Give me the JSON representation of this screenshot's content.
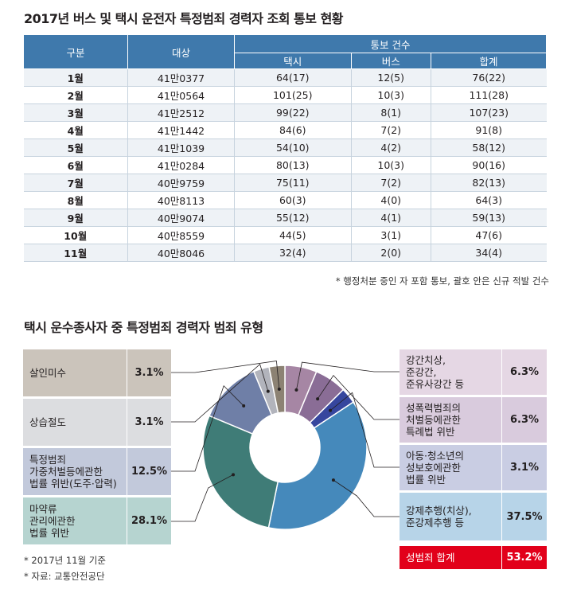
{
  "table_title": "2017년 버스 및 택시 운전자 특정범죄 경력자 조회 통보 현황",
  "table": {
    "headers": {
      "category": "구분",
      "target": "대상",
      "group": "통보 건수",
      "taxi": "택시",
      "bus": "버스",
      "total": "합계"
    },
    "rows": [
      [
        "1월",
        "41만0377",
        "64(17)",
        "12(5)",
        "76(22)"
      ],
      [
        "2월",
        "41만0564",
        "101(25)",
        "10(3)",
        "111(28)"
      ],
      [
        "3월",
        "41만2512",
        "99(22)",
        "8(1)",
        "107(23)"
      ],
      [
        "4월",
        "41만1442",
        "84(6)",
        "7(2)",
        "91(8)"
      ],
      [
        "5월",
        "41만1039",
        "54(10)",
        "4(2)",
        "58(12)"
      ],
      [
        "6월",
        "41만0284",
        "80(13)",
        "10(3)",
        "90(16)"
      ],
      [
        "7월",
        "40만9759",
        "75(11)",
        "7(2)",
        "82(13)"
      ],
      [
        "8월",
        "40만8113",
        "60(3)",
        "4(0)",
        "64(3)"
      ],
      [
        "9월",
        "40만9074",
        "55(12)",
        "4(1)",
        "59(13)"
      ],
      [
        "10월",
        "40만8559",
        "44(5)",
        "3(1)",
        "47(6)"
      ],
      [
        "11월",
        "40만8046",
        "32(4)",
        "2(0)",
        "34(4)"
      ]
    ],
    "note": "* 행정처분 중인 자 포함 통보, 괄호 안은 신규 적발 건수"
  },
  "chart_data": {
    "type": "pie",
    "title": "택시 운수종사자 중 특정범죄 경력자 범죄 유형",
    "unit": "%",
    "slices": [
      {
        "label": "강간치상, 준강간, 준유사강간 등",
        "value": 6.3,
        "color": "#a686a4",
        "box": "#e5d7e4"
      },
      {
        "label": "성폭력범죄의 처벌등에관한 특례법 위반",
        "value": 6.3,
        "color": "#8a6d96",
        "box": "#d9cbdd"
      },
      {
        "label": "아동·청소년의 성보호에관한 법률 위반",
        "value": 3.1,
        "color": "#36469e",
        "box": "#c9cde3"
      },
      {
        "label": "강제추행(치상), 준강제추행 등",
        "value": 37.5,
        "color": "#4589bb",
        "box": "#b7d4e8"
      },
      {
        "label": "마약류 관리에관한 법률 위반",
        "value": 28.1,
        "color": "#3f7c77",
        "box": "#b6d4d0"
      },
      {
        "label": "특정범죄 가중처벌등에관한 법률 위반(도주·압력)",
        "value": 12.5,
        "color": "#6f7fa7",
        "box": "#c2c9db"
      },
      {
        "label": "상습절도",
        "value": 3.1,
        "color": "#b2b4bc",
        "box": "#dcdde0"
      },
      {
        "label": "살인미수",
        "value": 3.1,
        "color": "#8c8273",
        "box": "#cbc4bb"
      }
    ],
    "summary": {
      "label": "성범죄 합계",
      "value": "53.2%",
      "color": "#e2001a"
    }
  },
  "labels": {
    "left": [
      {
        "lines": [
          "살인미수"
        ],
        "pct": "3.1%"
      },
      {
        "lines": [
          "상습절도"
        ],
        "pct": "3.1%"
      },
      {
        "lines": [
          "특정범죄",
          "가중처벌등에관한",
          "법률 위반(도주·압력)"
        ],
        "pct": "12.5%"
      },
      {
        "lines": [
          "마약류",
          "관리에관한",
          "법률 위반"
        ],
        "pct": "28.1%"
      }
    ],
    "right": [
      {
        "lines": [
          "강간치상,",
          "준강간,",
          "준유사강간 등"
        ],
        "pct": "6.3%"
      },
      {
        "lines": [
          "성폭력범죄의",
          "처벌등에관한",
          "특례법 위반"
        ],
        "pct": "6.3%"
      },
      {
        "lines": [
          "아동·청소년의",
          "성보호에관한",
          "법률 위반"
        ],
        "pct": "3.1%"
      },
      {
        "lines": [
          "강제추행(치상),",
          "준강제추행 등"
        ],
        "pct": "37.5%"
      }
    ],
    "summary": {
      "label": "성범죄 합계",
      "pct": "53.2%"
    }
  },
  "footnotes": [
    "* 2017년 11월 기준",
    "* 자료: 교통안전공단"
  ]
}
